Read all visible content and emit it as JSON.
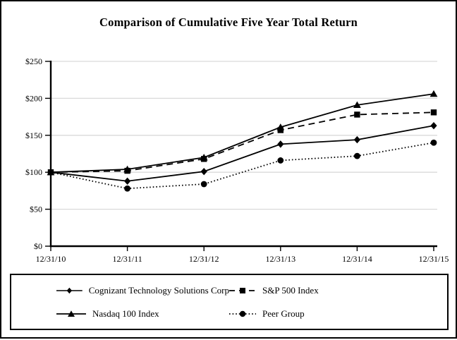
{
  "page": {
    "title": "Comparison of Cumulative Five Year Total Return"
  },
  "chart_data": {
    "type": "line",
    "title": "Comparison of Cumulative Five Year Total Return",
    "xlabel": "",
    "ylabel": "",
    "x_labels": [
      "12/31/10",
      "12/31/11",
      "12/31/12",
      "12/31/13",
      "12/31/14",
      "12/31/15"
    ],
    "y_ticks": [
      {
        "label": "$0",
        "value": 0
      },
      {
        "label": "$50",
        "value": 50
      },
      {
        "label": "$100",
        "value": 100
      },
      {
        "label": "$150",
        "value": 150
      },
      {
        "label": "$200",
        "value": 200
      },
      {
        "label": "$250",
        "value": 250
      }
    ],
    "ylim": [
      0,
      250
    ],
    "grid": true,
    "legend_position": "bottom-box",
    "series": [
      {
        "name": "Cognizant Technology Solutions Corp",
        "marker": "diamond",
        "line": "solid",
        "values": [
          100,
          88,
          101,
          138,
          144,
          163
        ]
      },
      {
        "name": "S&P 500 Index",
        "marker": "square",
        "line": "dashed",
        "values": [
          100,
          102,
          118,
          157,
          178,
          181
        ]
      },
      {
        "name": "Nasdaq 100 Index",
        "marker": "triangle",
        "line": "solid",
        "values": [
          100,
          104,
          120,
          161,
          191,
          206
        ]
      },
      {
        "name": "Peer Group",
        "marker": "circle",
        "line": "dotted",
        "values": [
          100,
          78,
          84,
          116,
          122,
          140
        ]
      }
    ],
    "colors": {
      "series": "#000000",
      "grid": "#d9d9d9",
      "axis": "#000000",
      "background": "#ffffff"
    }
  }
}
